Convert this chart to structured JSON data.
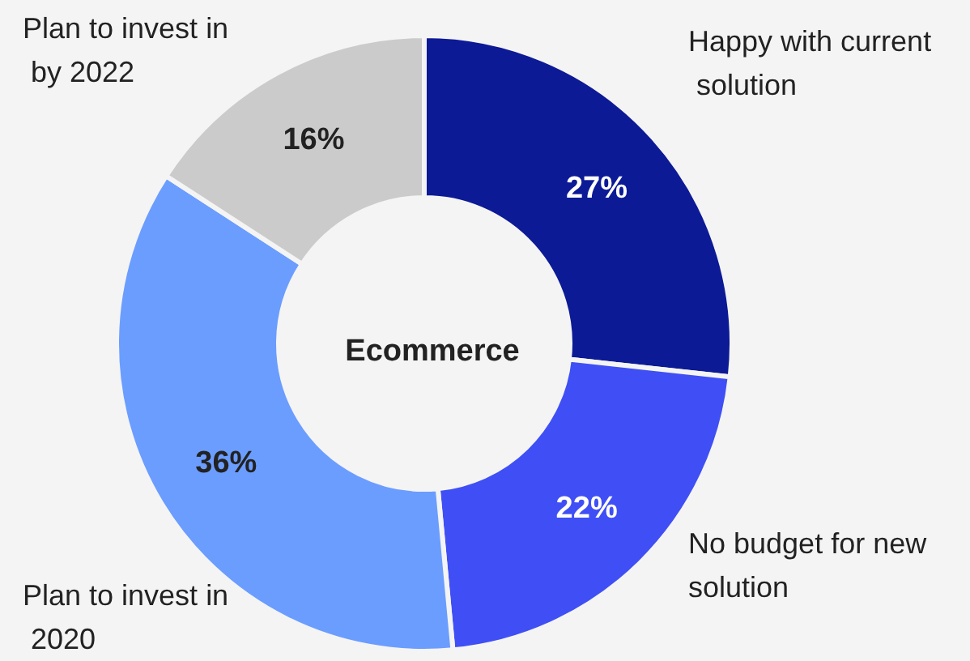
{
  "chart_data": {
    "type": "donut",
    "title": "Ecommerce",
    "categories": [
      "Happy with current solution",
      "No budget for new solution",
      "Plan to invest in 2020",
      "Plan to invest in by 2022"
    ],
    "values": [
      27,
      22,
      36,
      16
    ],
    "colors": [
      "#0c1a96",
      "#3f4ff5",
      "#6b9dff",
      "#cbcbcb"
    ],
    "value_labels": [
      "27%",
      "22%",
      "36%",
      "16%"
    ],
    "legend": false
  }
}
